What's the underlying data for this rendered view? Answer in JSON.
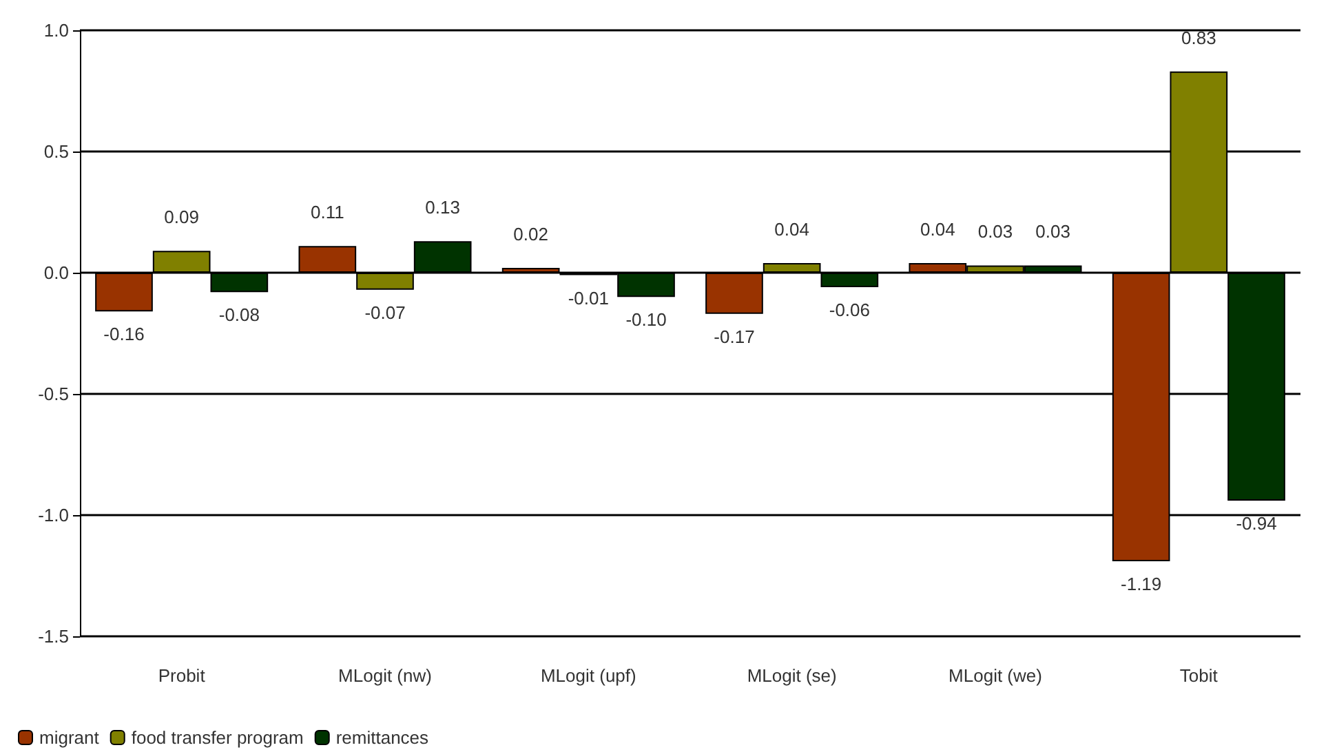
{
  "chart_data": {
    "type": "bar",
    "categories": [
      "Probit",
      "MLogit (nw)",
      "MLogit (upf)",
      "MLogit (se)",
      "MLogit (we)",
      "Tobit"
    ],
    "series": [
      {
        "name": "migrant",
        "color": "#993300",
        "values": [
          -0.16,
          0.11,
          0.02,
          -0.17,
          0.04,
          -1.19
        ],
        "value_labels": [
          "-0.16",
          "0.11",
          "0.02",
          "-0.17",
          "0.04",
          "-1.19"
        ]
      },
      {
        "name": "food transfer program",
        "color": "#808000",
        "values": [
          0.09,
          -0.07,
          -0.01,
          0.04,
          0.03,
          0.83
        ],
        "value_labels": [
          "0.09",
          "-0.07",
          "-0.01",
          "0.04",
          "0.03",
          "0.83"
        ]
      },
      {
        "name": "remittances",
        "color": "#003300",
        "values": [
          -0.08,
          0.13,
          -0.1,
          -0.06,
          0.03,
          -0.94
        ],
        "value_labels": [
          "-0.08",
          "0.13",
          "-0.10",
          "-0.06",
          "0.03",
          "-0.94"
        ]
      }
    ],
    "ylim": [
      -1.5,
      1.0
    ],
    "yticks": [
      {
        "value": -1.5,
        "label": "-1.5"
      },
      {
        "value": -1.0,
        "label": "-1.0"
      },
      {
        "value": -0.5,
        "label": "-0.5"
      },
      {
        "value": 0,
        "label": "0.0"
      },
      {
        "value": 0.5,
        "label": "0.5"
      },
      {
        "value": 1.0,
        "label": "1.0"
      }
    ],
    "grid": "y",
    "legend": "bottom left"
  }
}
